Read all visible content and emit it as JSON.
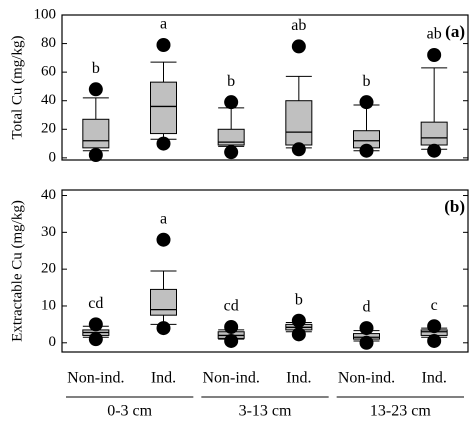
{
  "chart_data": [
    {
      "type": "box",
      "panel_label": "(a)",
      "ylabel": "Total Cu (mg/kg)",
      "color": "#c0c0c0",
      "ylim": [
        -1.5,
        100
      ],
      "yticks": [
        0,
        20,
        40,
        60,
        80,
        100
      ],
      "boxes": [
        {
          "whisker_low": 5,
          "q1": 7,
          "median": 12,
          "q3": 27,
          "whisker_high": 42,
          "outliers": [
            48,
            2
          ],
          "letter": "b"
        },
        {
          "whisker_low": 13,
          "q1": 17,
          "median": 36,
          "q3": 53,
          "whisker_high": 67,
          "outliers": [
            79,
            10
          ],
          "letter": "a"
        },
        {
          "whisker_low": 8,
          "q1": 9,
          "median": 11,
          "q3": 20,
          "whisker_high": 35,
          "outliers": [
            39,
            4
          ],
          "letter": "b"
        },
        {
          "whisker_low": 7,
          "q1": 9,
          "median": 18,
          "q3": 40,
          "whisker_high": 57,
          "outliers": [
            78,
            6
          ],
          "letter": "ab"
        },
        {
          "whisker_low": 5,
          "q1": 7,
          "median": 12,
          "q3": 19,
          "whisker_high": 37,
          "outliers": [
            39,
            5
          ],
          "letter": "b"
        },
        {
          "whisker_low": 6,
          "q1": 9,
          "median": 14,
          "q3": 25,
          "whisker_high": 63,
          "outliers": [
            72,
            5
          ],
          "letter": "ab"
        }
      ]
    },
    {
      "type": "box",
      "panel_label": "(b)",
      "ylabel": "Extractable Cu (mg/kg)",
      "color": "#c0c0c0",
      "ylim": [
        -2.5,
        41.5
      ],
      "yticks": [
        0,
        10,
        20,
        30,
        40
      ],
      "categories": [
        "Non-ind.",
        "Ind.",
        "Non-ind.",
        "Ind.",
        "Non-ind.",
        "Ind."
      ],
      "groups": [
        "0-3 cm",
        "3-13 cm",
        "13-23 cm"
      ],
      "boxes": [
        {
          "whisker_low": 1.5,
          "q1": 2,
          "median": 2.8,
          "q3": 3.5,
          "whisker_high": 4.5,
          "outliers": [
            5,
            1
          ],
          "letter": "cd"
        },
        {
          "whisker_low": 5,
          "q1": 7.5,
          "median": 9,
          "q3": 14.5,
          "whisker_high": 19.5,
          "outliers": [
            28,
            4
          ],
          "letter": "a"
        },
        {
          "whisker_low": 1,
          "q1": 1.2,
          "median": 2,
          "q3": 3,
          "whisker_high": 3.5,
          "outliers": [
            4.3,
            0.5
          ],
          "letter": "cd"
        },
        {
          "whisker_low": 3,
          "q1": 3.5,
          "median": 4.2,
          "q3": 5,
          "whisker_high": 5.5,
          "outliers": [
            6,
            2.3
          ],
          "letter": "b"
        },
        {
          "whisker_low": 0.5,
          "q1": 1,
          "median": 1.5,
          "q3": 2.5,
          "whisker_high": 3.3,
          "outliers": [
            4,
            0
          ],
          "letter": "d"
        },
        {
          "whisker_low": 1.5,
          "q1": 2,
          "median": 3,
          "q3": 3.5,
          "whisker_high": 4,
          "outliers": [
            4.5,
            0.5
          ],
          "letter": "c"
        }
      ]
    }
  ]
}
